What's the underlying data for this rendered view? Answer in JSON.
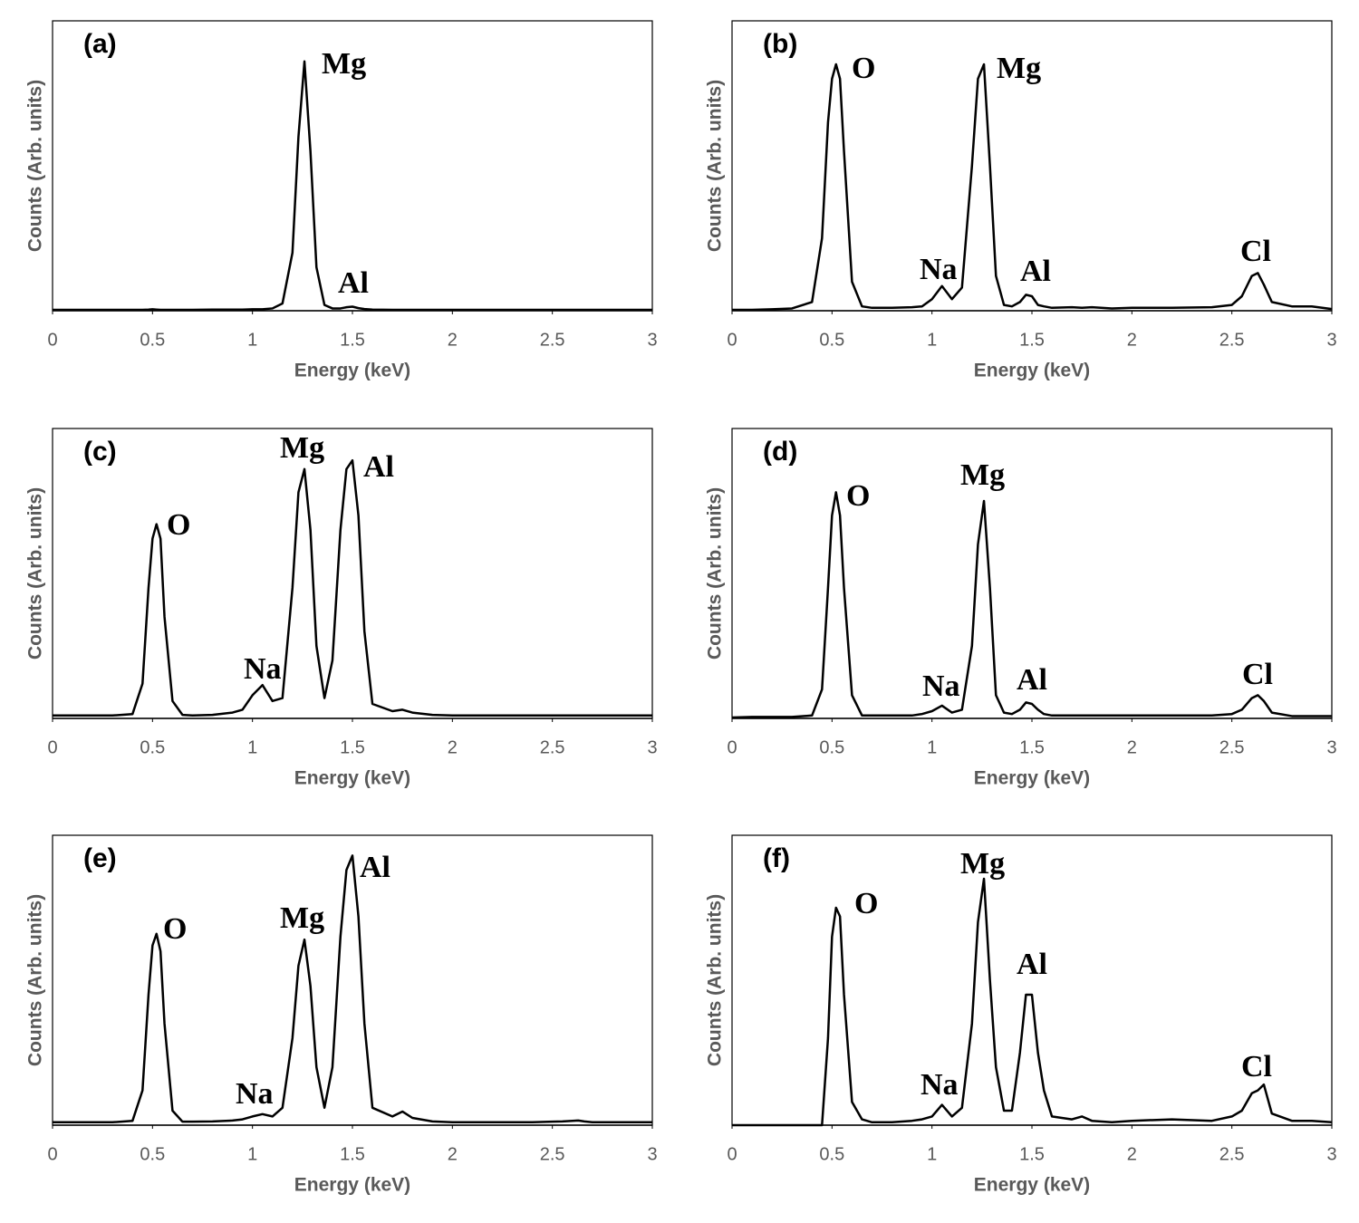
{
  "chart_data": [
    {
      "type": "line",
      "panel_label": "(a)",
      "xlabel": "Energy (keV)",
      "ylabel": "Counts (Arb. units)",
      "xlim": [
        0,
        3
      ],
      "ylim": [
        0,
        100
      ],
      "xticks": [
        0,
        0.5,
        1,
        1.5,
        2,
        2.5,
        3
      ],
      "color": "#000000",
      "annotations": [
        "Mg",
        "Al"
      ],
      "x": [
        0,
        0.1,
        0.2,
        0.3,
        0.4,
        0.45,
        0.48,
        0.5,
        0.52,
        0.54,
        0.56,
        0.6,
        0.65,
        0.7,
        0.8,
        0.9,
        0.95,
        1.0,
        1.05,
        1.1,
        1.15,
        1.2,
        1.23,
        1.26,
        1.29,
        1.32,
        1.36,
        1.4,
        1.44,
        1.47,
        1.5,
        1.53,
        1.56,
        1.6,
        1.7,
        1.75,
        1.8,
        1.9,
        2.0,
        2.2,
        2.4,
        2.5,
        2.55,
        2.6,
        2.63,
        2.66,
        2.7,
        2.8,
        2.9,
        3.0
      ],
      "values": [
        0.3,
        0.3,
        0.3,
        0.3,
        0.3,
        0.3,
        0.4,
        0.5,
        0.4,
        0.3,
        0.3,
        0.3,
        0.3,
        0.3,
        0.4,
        0.4,
        0.4,
        0.5,
        0.5,
        0.8,
        2.5,
        20,
        60,
        86,
        55,
        15,
        2,
        0.8,
        0.8,
        1.2,
        1.4,
        0.9,
        0.6,
        0.4,
        0.3,
        0.3,
        0.3,
        0.3,
        0.3,
        0.3,
        0.3,
        0.3,
        0.3,
        0.3,
        0.3,
        0.3,
        0.3,
        0.3,
        0.3,
        0.3
      ]
    },
    {
      "type": "line",
      "panel_label": "(b)",
      "xlabel": "Energy (keV)",
      "ylabel": "Counts (Arb. units)",
      "xlim": [
        0,
        3
      ],
      "ylim": [
        0,
        100
      ],
      "xticks": [
        0,
        0.5,
        1,
        1.5,
        2,
        2.5,
        3
      ],
      "color": "#000000",
      "annotations": [
        "O",
        "Mg",
        "Na",
        "Al",
        "Cl"
      ],
      "x": [
        0,
        0.1,
        0.2,
        0.3,
        0.4,
        0.45,
        0.48,
        0.5,
        0.52,
        0.54,
        0.56,
        0.6,
        0.65,
        0.7,
        0.8,
        0.9,
        0.95,
        1.0,
        1.05,
        1.1,
        1.15,
        1.2,
        1.23,
        1.26,
        1.29,
        1.32,
        1.36,
        1.4,
        1.44,
        1.47,
        1.5,
        1.53,
        1.56,
        1.6,
        1.7,
        1.75,
        1.8,
        1.9,
        2.0,
        2.2,
        2.4,
        2.5,
        2.55,
        2.6,
        2.63,
        2.66,
        2.7,
        2.8,
        2.9,
        3.0
      ],
      "values": [
        0.3,
        0.3,
        0.5,
        0.8,
        3,
        25,
        65,
        80,
        85,
        80,
        55,
        10,
        1.5,
        1,
        1,
        1.2,
        1.5,
        4,
        8.5,
        4,
        8,
        50,
        80,
        85,
        50,
        12,
        2,
        1.5,
        3,
        5.5,
        5,
        2,
        1.5,
        1,
        1.2,
        1,
        1.2,
        0.8,
        1,
        1,
        1.2,
        2,
        5,
        12,
        13,
        9,
        3,
        1.5,
        1.5,
        0.6
      ]
    },
    {
      "type": "line",
      "panel_label": "(c)",
      "xlabel": "Energy (keV)",
      "ylabel": "Counts (Arb. units)",
      "xlim": [
        0,
        3
      ],
      "ylim": [
        0,
        100
      ],
      "xticks": [
        0,
        0.5,
        1,
        1.5,
        2,
        2.5,
        3
      ],
      "color": "#000000",
      "annotations": [
        "O",
        "Mg",
        "Al",
        "Na"
      ],
      "x": [
        0,
        0.1,
        0.2,
        0.3,
        0.4,
        0.45,
        0.48,
        0.5,
        0.52,
        0.54,
        0.56,
        0.6,
        0.65,
        0.7,
        0.8,
        0.9,
        0.95,
        1.0,
        1.05,
        1.1,
        1.15,
        1.2,
        1.23,
        1.26,
        1.29,
        1.32,
        1.36,
        1.4,
        1.44,
        1.47,
        1.5,
        1.53,
        1.56,
        1.6,
        1.7,
        1.75,
        1.8,
        1.9,
        2.0,
        2.2,
        2.4,
        2.5,
        2.55,
        2.6,
        2.63,
        2.66,
        2.7,
        2.8,
        2.9,
        3.0
      ],
      "values": [
        1,
        1,
        1,
        1,
        1.5,
        12,
        45,
        62,
        67,
        62,
        35,
        6,
        1.2,
        1,
        1.2,
        2,
        3,
        8,
        11.5,
        6,
        7,
        45,
        78,
        86,
        65,
        25,
        7,
        20,
        65,
        86,
        89,
        70,
        30,
        5,
        2.5,
        3,
        2,
        1.2,
        1,
        1,
        1,
        1,
        1,
        1,
        1,
        1,
        1,
        1,
        1,
        1
      ]
    },
    {
      "type": "line",
      "panel_label": "(d)",
      "xlabel": "Energy (keV)",
      "ylabel": "Counts (Arb. units)",
      "xlim": [
        0,
        3
      ],
      "ylim": [
        0,
        100
      ],
      "xticks": [
        0,
        0.5,
        1,
        1.5,
        2,
        2.5,
        3
      ],
      "color": "#000000",
      "annotations": [
        "O",
        "Mg",
        "Na",
        "Al",
        "Cl"
      ],
      "x": [
        0,
        0.1,
        0.2,
        0.3,
        0.4,
        0.45,
        0.48,
        0.5,
        0.52,
        0.54,
        0.56,
        0.6,
        0.65,
        0.7,
        0.8,
        0.9,
        0.95,
        1.0,
        1.05,
        1.1,
        1.15,
        1.2,
        1.23,
        1.26,
        1.29,
        1.32,
        1.36,
        1.4,
        1.44,
        1.47,
        1.5,
        1.53,
        1.56,
        1.6,
        1.7,
        1.75,
        1.8,
        1.9,
        2.0,
        2.2,
        2.4,
        2.5,
        2.55,
        2.6,
        2.63,
        2.66,
        2.7,
        2.8,
        2.9,
        3.0
      ],
      "values": [
        0.3,
        0.5,
        0.5,
        0.5,
        1,
        10,
        45,
        70,
        78,
        70,
        45,
        8,
        1,
        1,
        1,
        1,
        1.5,
        2.5,
        4.4,
        2,
        3,
        25,
        60,
        75,
        45,
        8,
        2,
        1.5,
        3,
        5.5,
        5,
        3,
        1.5,
        1,
        1,
        1,
        1,
        1,
        1,
        1,
        1,
        1.5,
        3,
        7,
        8,
        6,
        2,
        0.8,
        0.8,
        0.8
      ]
    },
    {
      "type": "line",
      "panel_label": "(e)",
      "xlabel": "Energy (keV)",
      "ylabel": "Counts (Arb. units)",
      "xlim": [
        0,
        3
      ],
      "ylim": [
        0,
        100
      ],
      "xticks": [
        0,
        0.5,
        1,
        1.5,
        2,
        2.5,
        3
      ],
      "color": "#000000",
      "annotations": [
        "O",
        "Mg",
        "Al",
        "Na"
      ],
      "x": [
        0,
        0.1,
        0.2,
        0.3,
        0.4,
        0.45,
        0.48,
        0.5,
        0.52,
        0.54,
        0.56,
        0.6,
        0.65,
        0.7,
        0.8,
        0.9,
        0.95,
        1.0,
        1.05,
        1.1,
        1.15,
        1.2,
        1.23,
        1.26,
        1.29,
        1.32,
        1.36,
        1.4,
        1.44,
        1.47,
        1.5,
        1.53,
        1.56,
        1.6,
        1.7,
        1.75,
        1.8,
        1.9,
        2.0,
        2.2,
        2.4,
        2.5,
        2.55,
        2.6,
        2.63,
        2.66,
        2.7,
        2.8,
        2.9,
        3.0
      ],
      "values": [
        1,
        1,
        1,
        1,
        1.5,
        12,
        45,
        62,
        66,
        60,
        35,
        5,
        1.2,
        1.2,
        1.3,
        1.6,
        2,
        3,
        3.8,
        3,
        6,
        30,
        55,
        64,
        48,
        20,
        6,
        20,
        65,
        88,
        93,
        72,
        35,
        6,
        3,
        4.7,
        2.5,
        1.3,
        1,
        1,
        1,
        1.2,
        1.3,
        1.5,
        1.6,
        1.3,
        1,
        1,
        1,
        1
      ]
    },
    {
      "type": "line",
      "panel_label": "(f)",
      "xlabel": "Energy (keV)",
      "ylabel": "Counts (Arb. units)",
      "xlim": [
        0,
        3
      ],
      "ylim": [
        0,
        100
      ],
      "xticks": [
        0,
        0.5,
        1,
        1.5,
        2,
        2.5,
        3
      ],
      "color": "#000000",
      "annotations": [
        "O",
        "Mg",
        "Al",
        "Na",
        "Cl"
      ],
      "x": [
        0,
        0.1,
        0.2,
        0.3,
        0.4,
        0.45,
        0.48,
        0.5,
        0.52,
        0.54,
        0.56,
        0.6,
        0.65,
        0.7,
        0.8,
        0.9,
        0.95,
        1.0,
        1.05,
        1.1,
        1.15,
        1.2,
        1.23,
        1.26,
        1.29,
        1.32,
        1.36,
        1.4,
        1.44,
        1.47,
        1.5,
        1.53,
        1.56,
        1.6,
        1.7,
        1.75,
        1.8,
        1.9,
        2.0,
        2.2,
        2.4,
        2.5,
        2.55,
        2.6,
        2.63,
        2.66,
        2.7,
        2.8,
        2.9,
        3.0
      ],
      "values": [
        0,
        0,
        0,
        0,
        0,
        0,
        30,
        65,
        75,
        72,
        45,
        8,
        2,
        1,
        1,
        1.5,
        2,
        3,
        7,
        3,
        6,
        35,
        70,
        85,
        50,
        20,
        5,
        5,
        25,
        45,
        45,
        25,
        12,
        3,
        2,
        3,
        1.5,
        1,
        1.5,
        2,
        1.5,
        3,
        5,
        11,
        12,
        14,
        4,
        1.5,
        1.5,
        1
      ]
    }
  ]
}
